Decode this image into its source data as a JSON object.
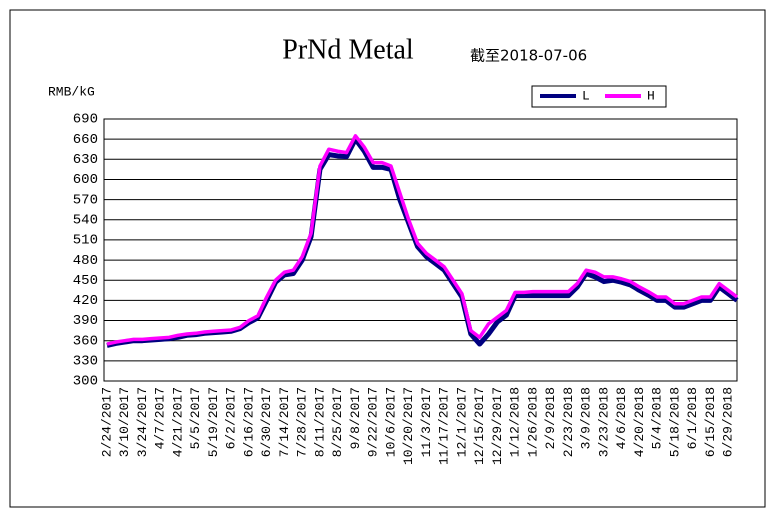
{
  "chart_data": {
    "type": "line",
    "title": "PrNd Metal",
    "subtitle": "截至2018-07-06",
    "y_label": "RMB/kG",
    "categories": [
      "2/24/2017",
      null,
      "3/10/2017",
      null,
      "3/24/2017",
      null,
      "4/7/2017",
      null,
      "4/21/2017",
      null,
      "5/5/2017",
      null,
      "5/19/2017",
      null,
      "6/2/2017",
      null,
      "6/16/2017",
      null,
      "6/30/2017",
      null,
      "7/14/2017",
      null,
      "7/28/2017",
      null,
      "8/11/2017",
      null,
      "8/25/2017",
      null,
      "9/8/2017",
      null,
      "9/22/2017",
      null,
      "10/6/2017",
      null,
      "10/20/2017",
      null,
      "11/3/2017",
      null,
      "11/17/2017",
      null,
      "12/1/2017",
      null,
      "12/15/2017",
      null,
      "12/29/2017",
      null,
      "1/12/2018",
      null,
      "1/26/2018",
      null,
      "2/9/2018",
      null,
      "2/23/2018",
      null,
      "3/9/2018",
      null,
      "3/23/2018",
      null,
      "4/6/2018",
      null,
      "4/20/2018",
      null,
      "5/4/2018",
      null,
      "5/18/2018",
      null,
      "6/1/2018",
      null,
      "6/15/2018",
      null,
      "6/29/2018",
      null
    ],
    "series": [
      {
        "name": "L",
        "color": "#000080",
        "values": [
          353,
          356,
          358,
          360,
          360,
          361,
          362,
          363,
          365,
          368,
          369,
          371,
          372,
          373,
          374,
          378,
          387,
          394,
          420,
          447,
          458,
          460,
          480,
          515,
          615,
          637,
          635,
          634,
          660,
          642,
          618,
          618,
          615,
          570,
          535,
          500,
          485,
          475,
          465,
          445,
          425,
          370,
          355,
          370,
          388,
          398,
          427,
          427,
          427,
          427,
          427,
          427,
          427,
          440,
          460,
          455,
          448,
          450,
          447,
          443,
          435,
          428,
          420,
          420,
          410,
          410,
          415,
          420,
          420,
          440,
          430,
          420
        ]
      },
      {
        "name": "H",
        "color": "#ff00ff",
        "values": [
          355,
          358,
          360,
          362,
          362,
          363,
          364,
          365,
          368,
          370,
          371,
          373,
          374,
          375,
          376,
          380,
          390,
          397,
          425,
          450,
          462,
          465,
          485,
          520,
          620,
          645,
          642,
          640,
          665,
          648,
          625,
          625,
          620,
          580,
          540,
          505,
          490,
          480,
          470,
          450,
          430,
          375,
          365,
          385,
          395,
          405,
          432,
          432,
          433,
          433,
          433,
          433,
          433,
          445,
          465,
          462,
          455,
          455,
          452,
          448,
          440,
          433,
          425,
          425,
          415,
          415,
          420,
          425,
          425,
          445,
          435,
          425
        ]
      }
    ],
    "ylim": [
      300,
      690
    ],
    "yticks": [
      300,
      330,
      360,
      390,
      420,
      450,
      480,
      510,
      540,
      570,
      600,
      630,
      660,
      690
    ],
    "grid": true,
    "legend": "top-right"
  }
}
